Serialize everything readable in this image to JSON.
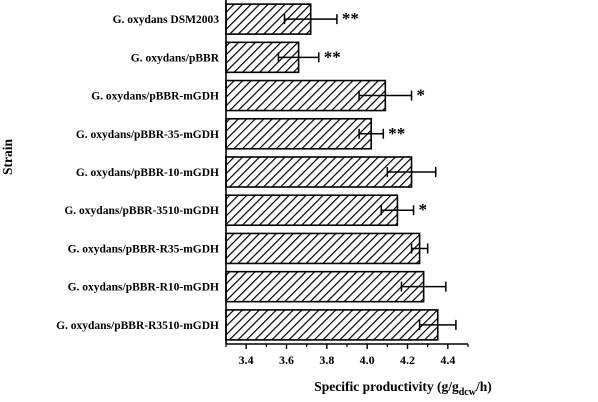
{
  "chart_data": {
    "type": "bar",
    "orientation": "horizontal",
    "categories": [
      "G. oxydans DSM2003",
      "G. oxydans/pBBR",
      "G. oxydans/pBBR-mGDH",
      "G. oxydans/pBBR-35-mGDH",
      "G. oxydans/pBBR-10-mGDH",
      "G. oxydans/pBBR-3510-mGDH",
      "G. oxydans/pBBR-R35-mGDH",
      "G. oxydans/pBBR-R10-mGDH",
      "G. oxydans/pBBR-R3510-mGDH"
    ],
    "values": [
      3.72,
      3.66,
      4.09,
      4.02,
      4.22,
      4.15,
      4.26,
      4.28,
      4.35
    ],
    "errors": [
      0.13,
      0.1,
      0.13,
      0.06,
      0.12,
      0.08,
      0.04,
      0.11,
      0.09
    ],
    "significance": [
      "**",
      "**",
      "*",
      "**",
      "",
      "*",
      "",
      "",
      ""
    ],
    "xlabel": {
      "main": "Specific productivity  (g/g",
      "subscript": "dcw",
      "suffix": "/h)"
    },
    "ylabel": "Strain",
    "xlim": [
      3.3,
      4.5
    ],
    "xticks": [
      "3.4",
      "3.6",
      "3.8",
      "4.0",
      "4.2",
      "4.4"
    ],
    "fill": "diagonal-hatch",
    "grid": false
  }
}
